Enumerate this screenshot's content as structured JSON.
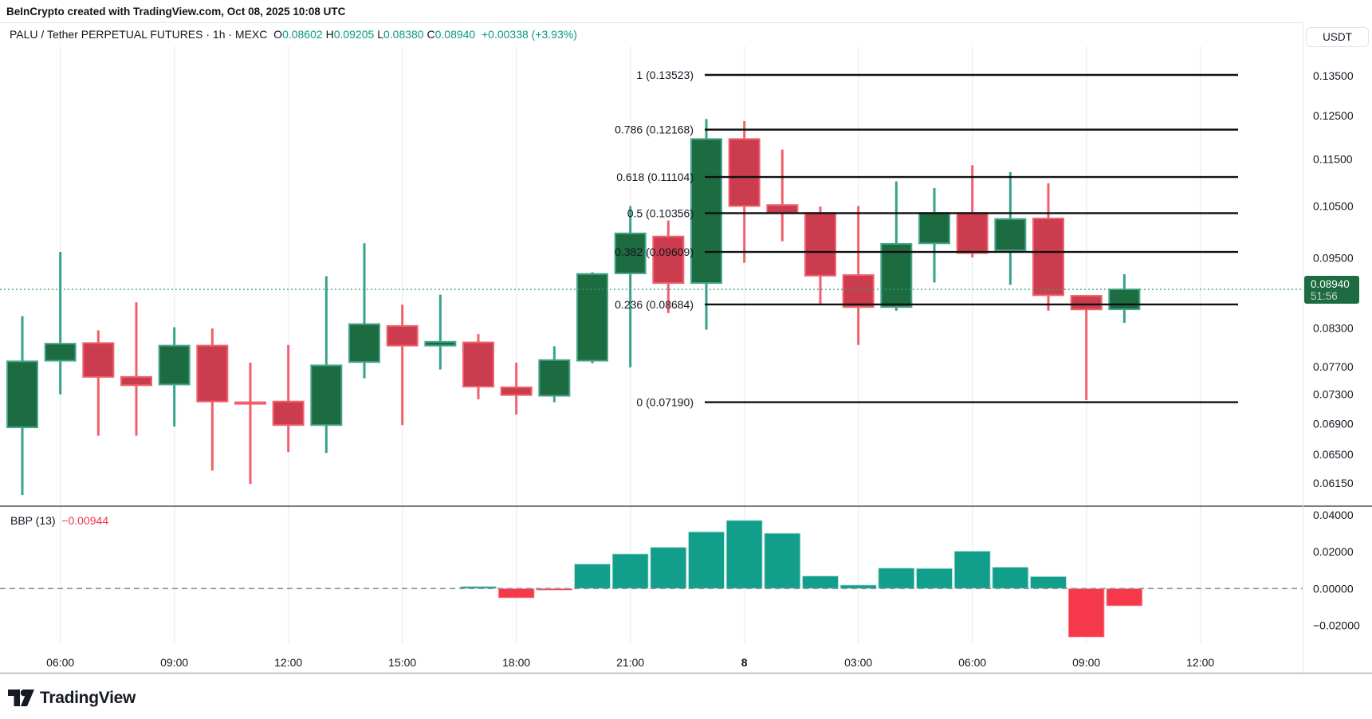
{
  "header": {
    "text": "BeInCrypto created with TradingView.com, Oct 08, 2025 10:08 UTC"
  },
  "title": {
    "symbol": "PALU / Tether PERPETUAL FUTURES · 1h · MEXC",
    "o_label": "O",
    "o": "0.08602",
    "h_label": "H",
    "h": "0.09205",
    "l_label": "L",
    "l": "0.08380",
    "c_label": "C",
    "c": "0.08940",
    "change": "+0.00338 (+3.93%)"
  },
  "currency_button": {
    "label": "USDT"
  },
  "logo": {
    "text": "TradingView"
  },
  "colors": {
    "up_body": "#1d6b40",
    "up_border": "#46a58b",
    "up_wick": "#37a28c",
    "down_body": "#cb3c4e",
    "down_border": "#f1606c",
    "down_wick": "#f25f6b",
    "bbp_pos": "#119e8b",
    "bbp_neg": "#f5394a",
    "value_green": "#089981",
    "badge_bg": "#1c6b41",
    "fib_line": "#111111",
    "text": "#131722",
    "grid": "#eef0f3",
    "dotted_price": "#3f9e71",
    "dash_zero": "#8f939e"
  },
  "chart_data": {
    "type": "candlestick",
    "symbol": "PALU/USDT Perpetual Futures 1h MEXC",
    "candles": [
      {
        "t": "05:00",
        "o": 0.0685,
        "h": 0.0849,
        "l": 0.0601,
        "c": 0.0778
      },
      {
        "t": "06:00",
        "o": 0.0779,
        "h": 0.0961,
        "l": 0.073,
        "c": 0.0805
      },
      {
        "t": "07:00",
        "o": 0.0806,
        "h": 0.0826,
        "l": 0.0674,
        "c": 0.0755
      },
      {
        "t": "08:00",
        "o": 0.0755,
        "h": 0.0872,
        "l": 0.0674,
        "c": 0.0743
      },
      {
        "t": "09:00",
        "o": 0.0744,
        "h": 0.0831,
        "l": 0.0686,
        "c": 0.0802
      },
      {
        "t": "10:00",
        "o": 0.0802,
        "h": 0.0829,
        "l": 0.063,
        "c": 0.072
      },
      {
        "t": "11:00",
        "o": 0.0719,
        "h": 0.0776,
        "l": 0.0614,
        "c": 0.0717
      },
      {
        "t": "12:00",
        "o": 0.072,
        "h": 0.0803,
        "l": 0.0653,
        "c": 0.0688
      },
      {
        "t": "13:00",
        "o": 0.0688,
        "h": 0.0917,
        "l": 0.0652,
        "c": 0.0772
      },
      {
        "t": "14:00",
        "o": 0.0777,
        "h": 0.0977,
        "l": 0.0753,
        "c": 0.0836
      },
      {
        "t": "15:00",
        "o": 0.0833,
        "h": 0.0868,
        "l": 0.0688,
        "c": 0.0802
      },
      {
        "t": "16:00",
        "o": 0.0802,
        "h": 0.0885,
        "l": 0.0766,
        "c": 0.0808
      },
      {
        "t": "17:00",
        "o": 0.0807,
        "h": 0.082,
        "l": 0.0723,
        "c": 0.0741
      },
      {
        "t": "18:00",
        "o": 0.074,
        "h": 0.0776,
        "l": 0.0702,
        "c": 0.0729
      },
      {
        "t": "19:00",
        "o": 0.0728,
        "h": 0.0801,
        "l": 0.0719,
        "c": 0.078
      },
      {
        "t": "20:00",
        "o": 0.0779,
        "h": 0.0924,
        "l": 0.0775,
        "c": 0.0921
      },
      {
        "t": "21:00",
        "o": 0.0922,
        "h": 0.105,
        "l": 0.0769,
        "c": 0.0996
      },
      {
        "t": "22:00",
        "o": 0.099,
        "h": 0.1021,
        "l": 0.0854,
        "c": 0.0905
      },
      {
        "t": "23:00",
        "o": 0.0905,
        "h": 0.1242,
        "l": 0.0827,
        "c": 0.1195
      },
      {
        "t": "00:00",
        "o": 0.1195,
        "h": 0.1237,
        "l": 0.0941,
        "c": 0.105
      },
      {
        "t": "01:00",
        "o": 0.1052,
        "h": 0.1171,
        "l": 0.0981,
        "c": 0.1036
      },
      {
        "t": "02:00",
        "o": 0.1036,
        "h": 0.1049,
        "l": 0.087,
        "c": 0.0918
      },
      {
        "t": "03:00",
        "o": 0.0919,
        "h": 0.105,
        "l": 0.0803,
        "c": 0.0864
      },
      {
        "t": "04:00",
        "o": 0.0864,
        "h": 0.1101,
        "l": 0.0858,
        "c": 0.0976
      },
      {
        "t": "05:00",
        "o": 0.0977,
        "h": 0.1087,
        "l": 0.0906,
        "c": 0.1036
      },
      {
        "t": "06:00",
        "o": 0.1036,
        "h": 0.1136,
        "l": 0.0951,
        "c": 0.0959
      },
      {
        "t": "07:00",
        "o": 0.0964,
        "h": 0.1121,
        "l": 0.0902,
        "c": 0.1024
      },
      {
        "t": "08:00",
        "o": 0.1025,
        "h": 0.1097,
        "l": 0.0858,
        "c": 0.0884
      },
      {
        "t": "09:00",
        "o": 0.0883,
        "h": 0.0883,
        "l": 0.0722,
        "c": 0.086
      },
      {
        "t": "10:00",
        "o": 0.08602,
        "h": 0.09205,
        "l": 0.0838,
        "c": 0.0894
      }
    ],
    "fib_levels": [
      {
        "label": "1 (0.13523)",
        "price": 0.13523
      },
      {
        "label": "0.786 (0.12168)",
        "price": 0.12168
      },
      {
        "label": "0.618 (0.11104)",
        "price": 0.11104
      },
      {
        "label": "0.5 (0.10356)",
        "price": 0.10356
      },
      {
        "label": "0.382 (0.09609)",
        "price": 0.09609
      },
      {
        "label": "0.236 (0.08684)",
        "price": 0.08684
      },
      {
        "label": "0 (0.07190)",
        "price": 0.0719
      }
    ],
    "indicator": {
      "name": "BBP (13)",
      "value": "−0.00944",
      "type": "histogram",
      "values": [
        {
          "i": 12,
          "v": 0.0011
        },
        {
          "i": 13,
          "v": -0.0051
        },
        {
          "i": 14,
          "v": -0.0009
        },
        {
          "i": 15,
          "v": 0.0133
        },
        {
          "i": 16,
          "v": 0.0188
        },
        {
          "i": 17,
          "v": 0.0224
        },
        {
          "i": 18,
          "v": 0.0308
        },
        {
          "i": 19,
          "v": 0.037
        },
        {
          "i": 20,
          "v": 0.03
        },
        {
          "i": 21,
          "v": 0.0068
        },
        {
          "i": 22,
          "v": 0.0019
        },
        {
          "i": 23,
          "v": 0.0111
        },
        {
          "i": 24,
          "v": 0.0109
        },
        {
          "i": 25,
          "v": 0.0203
        },
        {
          "i": 26,
          "v": 0.0116
        },
        {
          "i": 27,
          "v": 0.0065
        },
        {
          "i": 28,
          "v": -0.0264
        },
        {
          "i": 29,
          "v": -0.00944
        }
      ],
      "ticks": [
        {
          "label": "0.04000",
          "v": 0.04
        },
        {
          "label": "0.02000",
          "v": 0.02
        },
        {
          "label": "0.00000",
          "v": 0.0
        },
        {
          "label": "−0.02000",
          "v": -0.02
        }
      ]
    },
    "price_ticks": [
      {
        "label": "0.13500",
        "p": 0.135
      },
      {
        "label": "0.12500",
        "p": 0.125
      },
      {
        "label": "0.11500",
        "p": 0.115
      },
      {
        "label": "0.10500",
        "p": 0.105
      },
      {
        "label": "0.09500",
        "p": 0.095
      },
      {
        "label": "0.08300",
        "p": 0.083
      },
      {
        "label": "0.07700",
        "p": 0.077
      },
      {
        "label": "0.07300",
        "p": 0.073
      },
      {
        "label": "0.06900",
        "p": 0.069
      },
      {
        "label": "0.06500",
        "p": 0.065
      },
      {
        "label": "0.06150",
        "p": 0.0615
      }
    ],
    "time_ticks": [
      {
        "label": "06:00",
        "k": 1,
        "bold": false
      },
      {
        "label": "09:00",
        "k": 4,
        "bold": false
      },
      {
        "label": "12:00",
        "k": 7,
        "bold": false
      },
      {
        "label": "15:00",
        "k": 10,
        "bold": false
      },
      {
        "label": "18:00",
        "k": 13,
        "bold": false
      },
      {
        "label": "21:00",
        "k": 16,
        "bold": false
      },
      {
        "label": "8",
        "k": 19,
        "bold": true
      },
      {
        "label": "03:00",
        "k": 22,
        "bold": false
      },
      {
        "label": "06:00",
        "k": 25,
        "bold": false
      },
      {
        "label": "09:00",
        "k": 28,
        "bold": false
      },
      {
        "label": "12:00",
        "k": 31,
        "bold": false
      }
    ],
    "last_price": {
      "value": "0.08940",
      "countdown": "51:56"
    },
    "ylim_price": [
      0.0601,
      0.13523
    ],
    "legend_position": "none",
    "grid": "vertical-only"
  }
}
